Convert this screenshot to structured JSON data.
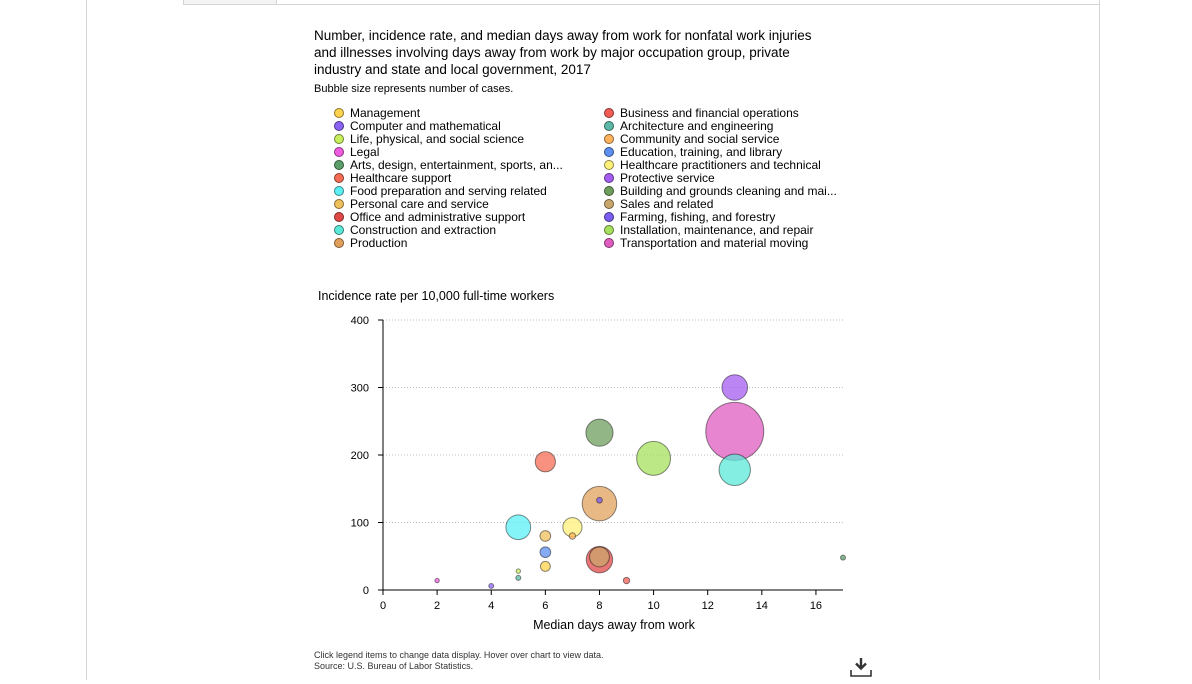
{
  "title": "Number, incidence rate, and median days away from work for nonfatal work injuries and illnesses involving days away from work by major occupation group, private industry and state and local government, 2017",
  "subtitle": "Bubble size represents number of cases.",
  "footer": {
    "instructions": "Click legend items to change data display. Hover over chart to view data.",
    "source": "Source: U.S. Bureau of Labor Statistics."
  },
  "download_icon": "download-icon",
  "legend": [
    {
      "label": "Management",
      "color": "#ffd34d"
    },
    {
      "label": "Business and financial operations",
      "color": "#f25c54"
    },
    {
      "label": "Computer and mathematical",
      "color": "#8a63f5"
    },
    {
      "label": "Architecture and engineering",
      "color": "#5eb8a8"
    },
    {
      "label": "Life, physical, and social science",
      "color": "#c7ef5e"
    },
    {
      "label": "Community and social service",
      "color": "#ffb35c"
    },
    {
      "label": "Legal",
      "color": "#f05ce0"
    },
    {
      "label": "Education, training, and library",
      "color": "#5c8ff0"
    },
    {
      "label": "Arts, design, entertainment, sports, an...",
      "color": "#5c9e69"
    },
    {
      "label": "Healthcare practitioners and technical",
      "color": "#fff07a"
    },
    {
      "label": "Healthcare support",
      "color": "#f56c54"
    },
    {
      "label": "Protective service",
      "color": "#a55cf0"
    },
    {
      "label": "Food preparation and serving related",
      "color": "#5cf0f5"
    },
    {
      "label": "Building and grounds cleaning and mai...",
      "color": "#6e9e5c"
    },
    {
      "label": "Personal care and service",
      "color": "#f0c05c"
    },
    {
      "label": "Sales and related",
      "color": "#c9a66b"
    },
    {
      "label": "Office and administrative support",
      "color": "#e04848"
    },
    {
      "label": "Farming, fishing, and forestry",
      "color": "#7a5cf0"
    },
    {
      "label": "Construction and extraction",
      "color": "#5ce8d8"
    },
    {
      "label": "Installation, maintenance, and repair",
      "color": "#a6e05c"
    },
    {
      "label": "Production",
      "color": "#e0a05c"
    },
    {
      "label": "Transportation and material moving",
      "color": "#e05cc0"
    }
  ],
  "chart_data": {
    "type": "scatter",
    "subtype": "bubble",
    "ylabel": "Incidence rate per 10,000 full-time workers",
    "xlabel": "Median days away from work",
    "xlim": [
      0,
      17
    ],
    "ylim": [
      0,
      400
    ],
    "x_ticks": [
      "0",
      "2",
      "4",
      "6",
      "8",
      "10",
      "12",
      "14",
      "16"
    ],
    "y_ticks": [
      "0",
      "100",
      "200",
      "300",
      "400"
    ],
    "grid": "horizontal dotted",
    "points": [
      {
        "name": "Management",
        "x": 6,
        "y": 35,
        "size": 12
      },
      {
        "name": "Business and financial operations",
        "x": 9,
        "y": 14,
        "size": 5
      },
      {
        "name": "Computer and mathematical",
        "x": 4,
        "y": 6,
        "size": 3
      },
      {
        "name": "Architecture and engineering",
        "x": 5,
        "y": 18,
        "size": 3
      },
      {
        "name": "Life, physical, and social science",
        "x": 5,
        "y": 28,
        "size": 2
      },
      {
        "name": "Community and social service",
        "x": 7,
        "y": 80,
        "size": 5
      },
      {
        "name": "Legal",
        "x": 2,
        "y": 14,
        "size": 1
      },
      {
        "name": "Education, training, and library",
        "x": 6,
        "y": 56,
        "size": 14
      },
      {
        "name": "Arts, design, entertainment, sports, and media",
        "x": 17,
        "y": 48,
        "size": 3
      },
      {
        "name": "Healthcare practitioners and technical",
        "x": 7,
        "y": 93,
        "size": 45
      },
      {
        "name": "Healthcare support",
        "x": 6,
        "y": 190,
        "size": 50
      },
      {
        "name": "Protective service",
        "x": 13,
        "y": 300,
        "size": 80
      },
      {
        "name": "Food preparation and serving related",
        "x": 5,
        "y": 93,
        "size": 75
      },
      {
        "name": "Building and grounds cleaning and maintenance",
        "x": 8,
        "y": 233,
        "size": 90
      },
      {
        "name": "Personal care and service",
        "x": 6,
        "y": 80,
        "size": 14
      },
      {
        "name": "Sales and related",
        "x": 8,
        "y": 49,
        "size": 48
      },
      {
        "name": "Office and administrative support",
        "x": 8,
        "y": 45,
        "size": 85
      },
      {
        "name": "Farming, fishing, and forestry",
        "x": 8,
        "y": 133,
        "size": 4
      },
      {
        "name": "Construction and extraction",
        "x": 13,
        "y": 178,
        "size": 120
      },
      {
        "name": "Installation, maintenance, and repair",
        "x": 10,
        "y": 195,
        "size": 140
      },
      {
        "name": "Production",
        "x": 8,
        "y": 128,
        "size": 145
      },
      {
        "name": "Transportation and material moving",
        "x": 13,
        "y": 235,
        "size": 410
      }
    ]
  }
}
